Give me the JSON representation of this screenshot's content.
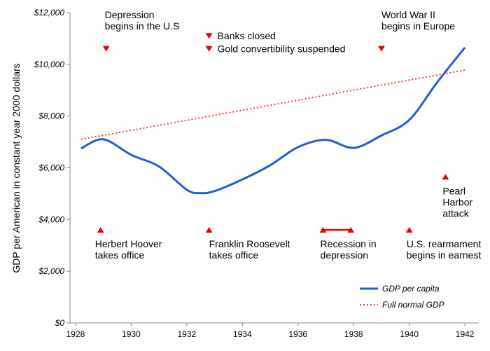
{
  "chart_data": {
    "type": "line",
    "ylabel": "GDP per American in constant year 2000 dollars",
    "xlim": [
      1927.8,
      1942.5
    ],
    "ylim": [
      0,
      12000
    ],
    "y_ticks": [
      {
        "value": 0,
        "label": "$0"
      },
      {
        "value": 2000,
        "label": "$2,000"
      },
      {
        "value": 4000,
        "label": "$4,000"
      },
      {
        "value": 6000,
        "label": "$6,000"
      },
      {
        "value": 8000,
        "label": "$8,000"
      },
      {
        "value": 10000,
        "label": "$10,000"
      },
      {
        "value": 12000,
        "label": "$12,000"
      }
    ],
    "x_ticks": [
      {
        "value": 1928,
        "label": "1928"
      },
      {
        "value": 1930,
        "label": "1930"
      },
      {
        "value": 1932,
        "label": "1932"
      },
      {
        "value": 1934,
        "label": "1934"
      },
      {
        "value": 1936,
        "label": "1936"
      },
      {
        "value": 1938,
        "label": "1938"
      },
      {
        "value": 1940,
        "label": "1940"
      },
      {
        "value": 1942,
        "label": "1942"
      }
    ],
    "series": [
      {
        "name": "GDP per capita",
        "color": "#1f5fd6",
        "style": "solid",
        "x": [
          1928.2,
          1929,
          1930,
          1931,
          1932,
          1932.5,
          1933,
          1934,
          1935,
          1936,
          1937,
          1938,
          1939,
          1940,
          1941,
          1942
        ],
        "y": [
          6750,
          7100,
          6500,
          6050,
          5150,
          5020,
          5100,
          5550,
          6100,
          6800,
          7080,
          6770,
          7250,
          7850,
          9300,
          10650
        ]
      },
      {
        "name": "Full normal GDP",
        "color": "#ff2020",
        "style": "dotted",
        "x": [
          1928.2,
          1942
        ],
        "y": [
          7100,
          9780
        ]
      }
    ],
    "annotations": [
      {
        "name": "depression-begins",
        "lines": [
          "Depression",
          "begins in the U.S"
        ],
        "marker": "down",
        "marker_x": 1929.1,
        "marker_y": 10600,
        "text_x": 1929.05,
        "text_y": 11350,
        "text_pos": "above"
      },
      {
        "name": "banks-closed",
        "lines": [
          "Banks closed"
        ],
        "marker": "down",
        "marker_x": 1932.8,
        "marker_y": 11100,
        "text_x": 1933.1,
        "text_y": 11100,
        "text_pos": "right"
      },
      {
        "name": "gold-suspended",
        "lines": [
          "Gold convertibility suspended"
        ],
        "marker": "down",
        "marker_x": 1932.8,
        "marker_y": 10600,
        "text_x": 1933.1,
        "text_y": 10600,
        "text_pos": "right"
      },
      {
        "name": "world-war-ii",
        "lines": [
          "World War II",
          "begins in Europe"
        ],
        "marker": "down",
        "marker_x": 1939.0,
        "marker_y": 10600,
        "text_x": 1939.0,
        "text_y": 11350,
        "text_pos": "above"
      },
      {
        "name": "pearl-harbor",
        "lines": [
          "Pearl",
          "Harbor",
          "attack"
        ],
        "marker": "up",
        "marker_x": 1941.3,
        "marker_y": 5650,
        "text_x": 1941.2,
        "text_y": 5300,
        "text_pos": "below"
      },
      {
        "name": "hoover",
        "lines": [
          "Herbert Hoover",
          "takes office"
        ],
        "marker": "up",
        "marker_x": 1928.9,
        "marker_y": 3600,
        "text_x": 1928.7,
        "text_y": 3250,
        "text_pos": "below"
      },
      {
        "name": "roosevelt",
        "lines": [
          "Franklin Roosevelt",
          "takes office"
        ],
        "marker": "up",
        "marker_x": 1932.8,
        "marker_y": 3600,
        "text_x": 1932.8,
        "text_y": 3250,
        "text_pos": "below"
      },
      {
        "name": "recession",
        "lines": [
          "Recession in",
          "depression"
        ],
        "marker": "range",
        "marker_x": 1936.9,
        "marker_x2": 1937.9,
        "marker_y": 3600,
        "text_x": 1936.8,
        "text_y": 3250,
        "text_pos": "below"
      },
      {
        "name": "rearmament",
        "lines": [
          "U.S. rearmament",
          "begins in earnest"
        ],
        "marker": "up",
        "marker_x": 1940.0,
        "marker_y": 3600,
        "text_x": 1939.9,
        "text_y": 3250,
        "text_pos": "below"
      }
    ],
    "legend": {
      "position": "bottom-right",
      "entries": [
        {
          "label": "GDP per capita",
          "color": "#1f5fd6",
          "style": "solid"
        },
        {
          "label": "Full normal GDP",
          "color": "#ff2020",
          "style": "dotted"
        }
      ]
    },
    "marker_color": "#ee0000",
    "grid": false
  }
}
